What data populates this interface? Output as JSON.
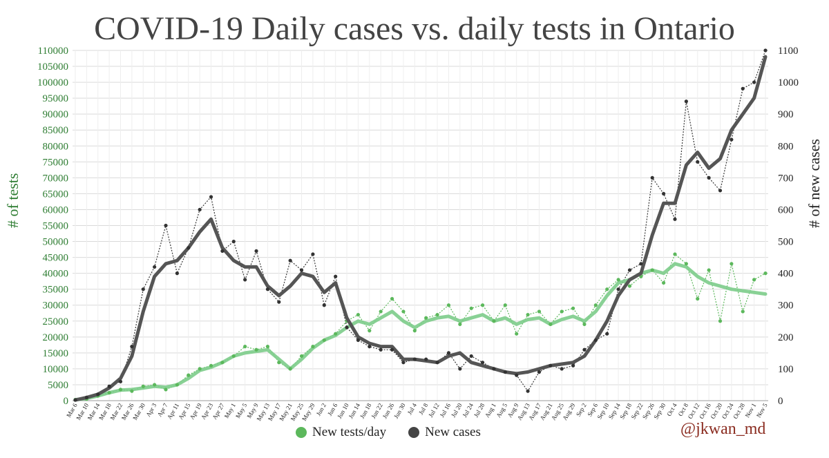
{
  "title": "COVID-19 Daily cases vs. daily tests in Ontario",
  "credit": "@jkwan_md",
  "chart_data": {
    "type": "line",
    "title": "COVID-19 Daily cases vs. daily tests in Ontario",
    "ylabel_left": "# of tests",
    "ylabel_right": "# of new cases",
    "ylim_left": [
      0,
      110000
    ],
    "ylim_right": [
      0,
      1100
    ],
    "yticks_left": [
      0,
      5000,
      10000,
      15000,
      20000,
      25000,
      30000,
      35000,
      40000,
      45000,
      50000,
      55000,
      60000,
      65000,
      70000,
      75000,
      80000,
      85000,
      90000,
      95000,
      100000,
      105000,
      110000
    ],
    "yticks_right": [
      0,
      100,
      200,
      300,
      400,
      500,
      600,
      700,
      800,
      900,
      1000,
      1100
    ],
    "xticks": [
      "Mar 6",
      "Mar 10",
      "Mar 14",
      "Mar 18",
      "Mar 22",
      "Mar 26",
      "Mar 30",
      "Apr 3",
      "Apr 7",
      "Apr 11",
      "Apr 15",
      "Apr 19",
      "Apr 23",
      "Apr 27",
      "May 1",
      "May 5",
      "May 9",
      "May 13",
      "May 17",
      "May 21",
      "May 25",
      "May 29",
      "Jun 2",
      "Jun 6",
      "Jun 10",
      "Jun 14",
      "Jun 18",
      "Jun 22",
      "Jun 26",
      "Jun 30",
      "Jul 4",
      "Jul 8",
      "Jul 12",
      "Jul 16",
      "Jul 20",
      "Jul 24",
      "Jul 28",
      "Aug 1",
      "Aug 5",
      "Aug 9",
      "Aug 13",
      "Aug 17",
      "Aug 21",
      "Aug 25",
      "Aug 29",
      "Sep 2",
      "Sep 6",
      "Sep 10",
      "Sep 14",
      "Sep 18",
      "Sep 22",
      "Sep 26",
      "Sep 30",
      "Oct 4",
      "Oct 8",
      "Oct 12",
      "Oct 16",
      "Oct 20",
      "Oct 24",
      "Oct 28",
      "Nov 1",
      "Nov 5"
    ],
    "grid": true,
    "legend_position": "bottom-center",
    "series": [
      {
        "name": "New tests/day",
        "axis": "left",
        "color": "#5cb85c",
        "smooth_color": "#7ccc8a",
        "x": [
          "Mar 6",
          "Mar 10",
          "Mar 14",
          "Mar 18",
          "Mar 22",
          "Mar 26",
          "Mar 30",
          "Apr 3",
          "Apr 7",
          "Apr 11",
          "Apr 15",
          "Apr 19",
          "Apr 23",
          "Apr 27",
          "May 1",
          "May 5",
          "May 9",
          "May 13",
          "May 17",
          "May 21",
          "May 25",
          "May 29",
          "Jun 2",
          "Jun 6",
          "Jun 10",
          "Jun 14",
          "Jun 18",
          "Jun 22",
          "Jun 26",
          "Jun 30",
          "Jul 4",
          "Jul 8",
          "Jul 12",
          "Jul 16",
          "Jul 20",
          "Jul 24",
          "Jul 28",
          "Aug 1",
          "Aug 5",
          "Aug 9",
          "Aug 13",
          "Aug 17",
          "Aug 21",
          "Aug 25",
          "Aug 29",
          "Sep 2",
          "Sep 6",
          "Sep 10",
          "Sep 14",
          "Sep 18",
          "Sep 22",
          "Sep 26",
          "Sep 30",
          "Oct 4",
          "Oct 8",
          "Oct 12",
          "Oct 16",
          "Oct 20",
          "Oct 24",
          "Oct 28",
          "Nov 1",
          "Nov 5"
        ],
        "values": [
          300,
          500,
          1500,
          2500,
          3500,
          3000,
          4500,
          5000,
          3500,
          5000,
          8000,
          10000,
          11000,
          12000,
          14000,
          17000,
          16000,
          17000,
          12000,
          10000,
          14000,
          17000,
          19000,
          21000,
          25000,
          27000,
          22000,
          28000,
          32000,
          28000,
          22000,
          26000,
          27000,
          30000,
          24000,
          29000,
          30000,
          25000,
          30000,
          21000,
          27000,
          28000,
          24000,
          28000,
          29000,
          24000,
          30000,
          35000,
          38000,
          36000,
          39000,
          41000,
          37000,
          46000,
          43000,
          32000,
          41000,
          25000,
          43000,
          28000,
          38000,
          40000
        ],
        "smoothed": [
          300,
          700,
          1500,
          2500,
          3300,
          3500,
          4000,
          4500,
          4200,
          5000,
          7000,
          9500,
          10500,
          12000,
          14000,
          15000,
          15500,
          16000,
          13000,
          10000,
          13000,
          16500,
          19000,
          20500,
          23000,
          25000,
          24000,
          26000,
          28000,
          25000,
          23000,
          25000,
          26000,
          26500,
          25000,
          26000,
          27000,
          25000,
          26000,
          24000,
          25500,
          26000,
          24000,
          25500,
          26500,
          25000,
          28000,
          33000,
          37000,
          38000,
          40000,
          41000,
          40000,
          43000,
          42000,
          39000,
          37000,
          36000,
          35000,
          34500,
          34000,
          33500
        ]
      },
      {
        "name": "New cases",
        "axis": "right",
        "color": "#333333",
        "smooth_color": "#555555",
        "x": [
          "Mar 6",
          "Mar 10",
          "Mar 14",
          "Mar 18",
          "Mar 22",
          "Mar 26",
          "Mar 30",
          "Apr 3",
          "Apr 7",
          "Apr 11",
          "Apr 15",
          "Apr 19",
          "Apr 23",
          "Apr 27",
          "May 1",
          "May 5",
          "May 9",
          "May 13",
          "May 17",
          "May 21",
          "May 25",
          "May 29",
          "Jun 2",
          "Jun 6",
          "Jun 10",
          "Jun 14",
          "Jun 18",
          "Jun 22",
          "Jun 26",
          "Jun 30",
          "Jul 4",
          "Jul 8",
          "Jul 12",
          "Jul 16",
          "Jul 20",
          "Jul 24",
          "Jul 28",
          "Aug 1",
          "Aug 5",
          "Aug 9",
          "Aug 13",
          "Aug 17",
          "Aug 21",
          "Aug 25",
          "Aug 29",
          "Sep 2",
          "Sep 6",
          "Sep 10",
          "Sep 14",
          "Sep 18",
          "Sep 22",
          "Sep 26",
          "Sep 30",
          "Oct 4",
          "Oct 8",
          "Oct 12",
          "Oct 16",
          "Oct 20",
          "Oct 24",
          "Oct 28",
          "Nov 1",
          "Nov 5"
        ],
        "values": [
          2,
          10,
          20,
          45,
          60,
          170,
          350,
          420,
          550,
          400,
          480,
          600,
          640,
          470,
          500,
          380,
          470,
          350,
          310,
          440,
          410,
          460,
          300,
          390,
          230,
          190,
          170,
          160,
          160,
          120,
          130,
          130,
          120,
          150,
          100,
          140,
          120,
          100,
          90,
          80,
          30,
          90,
          110,
          100,
          110,
          160,
          190,
          210,
          350,
          410,
          430,
          700,
          650,
          570,
          940,
          750,
          700,
          660,
          820,
          980,
          1000,
          1100
        ],
        "smoothed": [
          2,
          10,
          20,
          40,
          70,
          140,
          280,
          390,
          430,
          440,
          480,
          530,
          570,
          480,
          440,
          420,
          420,
          360,
          330,
          360,
          400,
          390,
          340,
          370,
          260,
          200,
          180,
          170,
          170,
          130,
          130,
          125,
          120,
          140,
          150,
          120,
          110,
          100,
          90,
          85,
          90,
          100,
          110,
          115,
          120,
          140,
          190,
          250,
          330,
          380,
          400,
          520,
          620,
          620,
          740,
          780,
          730,
          760,
          850,
          900,
          950,
          1080
        ]
      }
    ]
  }
}
